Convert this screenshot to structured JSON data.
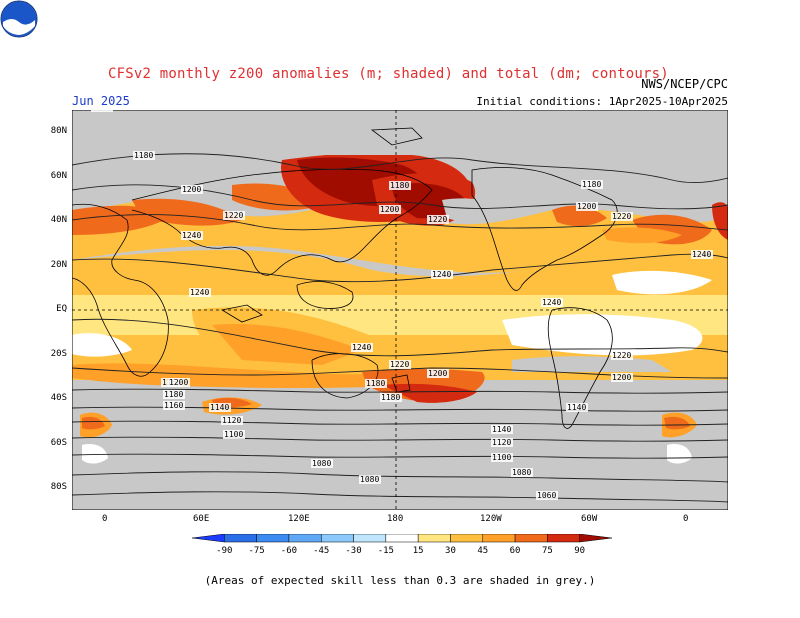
{
  "title": "CFSv2 monthly z200 anomalies (m; shaded) and total (dm; contours)",
  "valid_month": "Jun 2025",
  "initial_conditions": "Initial conditions: 1Apr2025-10Apr2025",
  "agency": "NWS/NCEP/CPC",
  "logo_icon": "noaa-logo-icon",
  "footnote": "(Areas of expected skill less than 0.3 are shaded in grey.)",
  "map": {
    "lat_labels": [
      "80N",
      "60N",
      "40N",
      "20N",
      "EQ",
      "20S",
      "40S",
      "60S",
      "80S"
    ],
    "lon_labels": [
      "0",
      "60E",
      "120E",
      "180",
      "120W",
      "60W",
      "0"
    ],
    "contour_labels": [
      "1180",
      "1200",
      "1220",
      "1240",
      "1240",
      "1240",
      "1240",
      "1180",
      "1200",
      "1220",
      "1180",
      "1200",
      "1220",
      "1240",
      "1240",
      "1220",
      "1220",
      "1200",
      "1200",
      "1180",
      "1160",
      "1140",
      "1120",
      "1100",
      "1080",
      "1080",
      "1180",
      "1160",
      "1140",
      "1120",
      "1100",
      "1080",
      "1060",
      "1200",
      "1180",
      "1220",
      "1200",
      "1180",
      "1160",
      "1140"
    ]
  },
  "colorbar": {
    "ticks": [
      "-90",
      "-75",
      "-60",
      "-45",
      "-30",
      "-15",
      "15",
      "30",
      "45",
      "60",
      "75",
      "90"
    ],
    "colors": [
      "#1e3cff",
      "#2b6fe8",
      "#3b8bf0",
      "#5ea8f5",
      "#8cc8fa",
      "#bfe6fc",
      "#ffffff",
      "#ffe680",
      "#ffc040",
      "#ffa028",
      "#f06a1c",
      "#d42a10",
      "#a00c00"
    ]
  }
}
